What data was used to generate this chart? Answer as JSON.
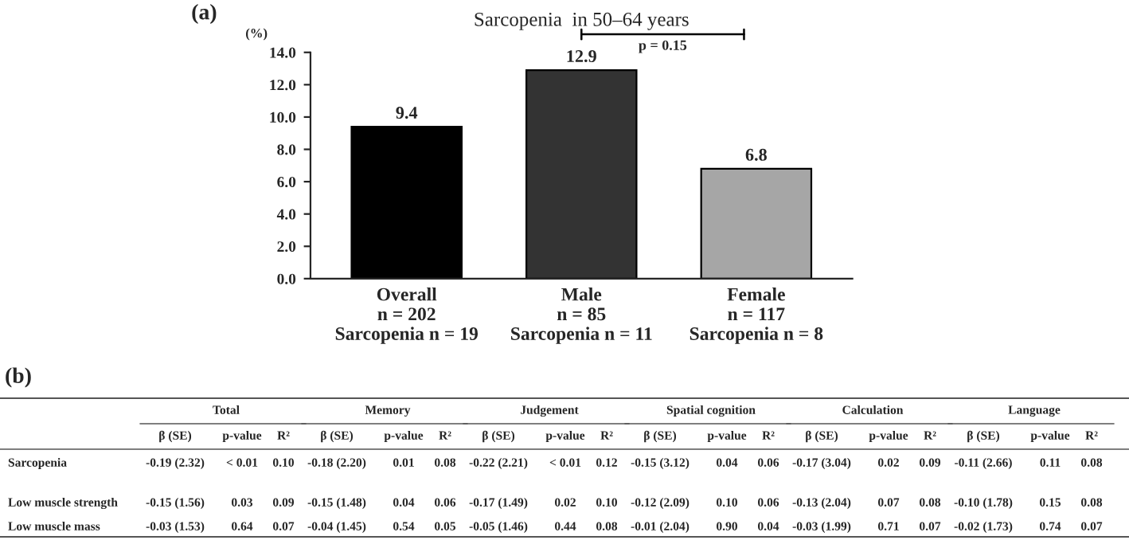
{
  "chart_data": [
    {
      "type": "bar",
      "title": "Sarcopenia  in 50–64 years",
      "ylabel": "(%)",
      "categories": [
        "Overall\nn = 202\nSarcopenia n = 19",
        "Male\nn = 85\nSarcopenia n = 11",
        "Female\nn = 117\nSarcopenia n = 8"
      ],
      "values": [
        9.4,
        12.9,
        6.8
      ],
      "colors": [
        "#000000",
        "#333333",
        "#a6a6a6"
      ],
      "ylim": [
        0,
        14
      ],
      "yticks": [
        {
          "value": 0,
          "label": "0.0"
        },
        {
          "value": 2,
          "label": "2.0"
        },
        {
          "value": 4,
          "label": "4.0"
        },
        {
          "value": 6,
          "label": "6.0"
        },
        {
          "value": 8,
          "label": "8.0"
        },
        {
          "value": 10,
          "label": "10.0"
        },
        {
          "value": 12,
          "label": "12.0"
        },
        {
          "value": 14,
          "label": "14.0"
        }
      ],
      "data_labels": true,
      "grid": false,
      "legend": false,
      "annotations": [
        "(a)",
        "p = 0.15"
      ]
    },
    {
      "type": "other",
      "title": "(b)",
      "annotations": [
        "Total",
        "Memory",
        "Judgement",
        "Spatial cognition",
        "Calculation",
        "Language",
        "β (SE)",
        "p-value",
        "R²",
        "β (SE)",
        "p-value",
        "R²",
        "β (SE)",
        "p-value",
        "R²",
        "β (SE)",
        "p-value",
        "R²",
        "β (SE)",
        "p-value",
        "R²",
        "β (SE)",
        "p-value",
        "R²",
        "Sarcopenia",
        "-0.19 (2.32)",
        "< 0.01",
        "0.10",
        "-0.18 (2.20)",
        "0.01",
        "0.08",
        "-0.22 (2.21)",
        "< 0.01",
        "0.12",
        "-0.15 (3.12)",
        "0.04",
        "0.06",
        "-0.17 (3.04)",
        "0.02",
        "0.09",
        "-0.11 (2.66)",
        "0.11",
        "0.08",
        "Low muscle strength",
        "-0.15 (1.56)",
        "0.03",
        "0.09",
        "-0.15 (1.48)",
        "0.04",
        "0.06",
        "-0.17 (1.49)",
        "0.02",
        "0.10",
        "-0.12 (2.09)",
        "0.10",
        "0.06",
        "-0.13 (2.04)",
        "0.07",
        "0.08",
        "-0.10 (1.78)",
        "0.15",
        "0.08",
        "Low muscle mass",
        "-0.03 (1.53)",
        "0.64",
        "0.07",
        "-0.04 (1.45)",
        "0.54",
        "0.05",
        "-0.05 (1.46)",
        "0.44",
        "0.08",
        "-0.01 (2.04)",
        "0.90",
        "0.04",
        "-0.03 (1.99)",
        "0.71",
        "0.07",
        "-0.02 (1.73)",
        "0.74",
        "0.07"
      ]
    }
  ]
}
